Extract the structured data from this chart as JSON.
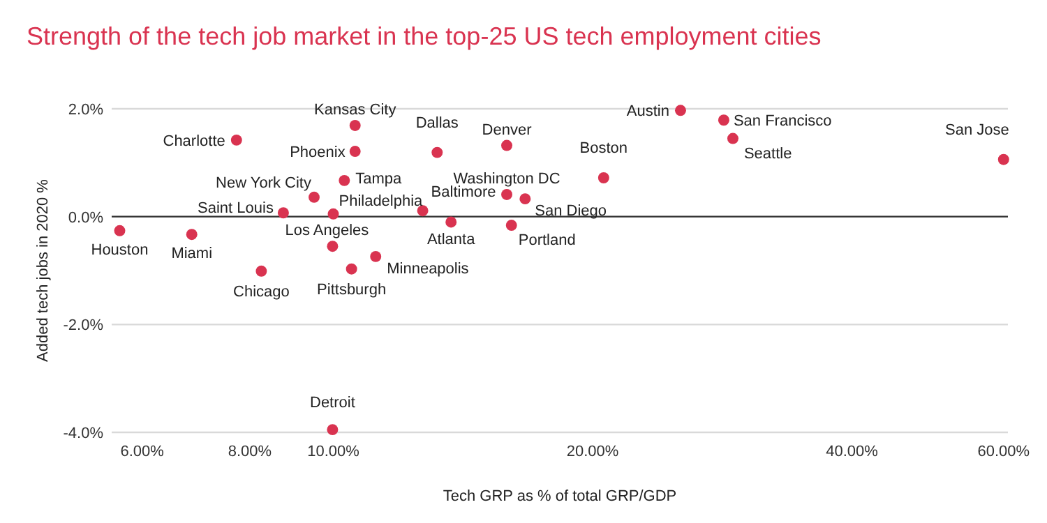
{
  "chart_data": {
    "type": "scatter",
    "title": "Strength of the tech job market in the top-25 US tech employment cities",
    "xlabel": "Tech GRP as % of total GRP/GDP",
    "ylabel": "Added tech jobs in 2020 %",
    "log": "x",
    "grid": "y",
    "marker": "circle",
    "xlim": [
      5.53,
      60.7
    ],
    "xticks": [
      {
        "value": 6,
        "label": "6.00%"
      },
      {
        "value": 8,
        "label": "8.00%"
      },
      {
        "value": 10,
        "label": "10.00%"
      },
      {
        "value": 20,
        "label": "20.00%"
      },
      {
        "value": 40,
        "label": "40.00%"
      },
      {
        "value": 60,
        "label": "60.00%"
      }
    ],
    "ylim": [
      -4,
      2
    ],
    "yticks": [
      {
        "value": 2,
        "label": "2.0%"
      },
      {
        "value": 0,
        "label": "0.0%"
      },
      {
        "value": -2,
        "label": "-2.0%"
      },
      {
        "value": -4,
        "label": "-4.0%"
      }
    ],
    "series": [
      {
        "color": "#d93350",
        "x": [
          5.65,
          6.85,
          8.25,
          7.72,
          8.75,
          9.5,
          10.0,
          9.98,
          9.98,
          10.5,
          11.2,
          10.3,
          10.6,
          10.6,
          12.7,
          13.2,
          13.7,
          15.9,
          15.9,
          16.7,
          16.1,
          20.6,
          25.3,
          28.4,
          29.1,
          60.0
        ],
        "values": [
          -0.26,
          -0.33,
          -1.01,
          1.42,
          0.07,
          0.36,
          0.05,
          -0.55,
          -3.95,
          -0.97,
          -0.74,
          0.67,
          1.69,
          1.21,
          0.11,
          1.19,
          -0.1,
          1.32,
          0.41,
          0.33,
          -0.16,
          0.72,
          1.97,
          1.79,
          1.45,
          1.06
        ]
      }
    ],
    "annotations": [
      {
        "text": "Houston",
        "x": 5.65,
        "y": -0.26
      },
      {
        "text": "Miami",
        "x": 6.85,
        "y": -0.33
      },
      {
        "text": "Chicago",
        "x": 8.25,
        "y": -1.01
      },
      {
        "text": "Charlotte",
        "x": 7.72,
        "y": 1.42
      },
      {
        "text": "Saint Louis",
        "x": 8.75,
        "y": 0.07
      },
      {
        "text": "New York City",
        "x": 9.5,
        "y": 0.36
      },
      {
        "text": "Philadelphia",
        "x": 10.0,
        "y": 0.05
      },
      {
        "text": "Los Angeles",
        "x": 9.98,
        "y": -0.55
      },
      {
        "text": "Detroit",
        "x": 9.98,
        "y": -3.95
      },
      {
        "text": "Pittsburgh",
        "x": 10.5,
        "y": -0.97
      },
      {
        "text": "Minneapolis",
        "x": 11.2,
        "y": -0.74
      },
      {
        "text": "Tampa",
        "x": 10.3,
        "y": 0.67
      },
      {
        "text": "Kansas City",
        "x": 10.6,
        "y": 1.69
      },
      {
        "text": "Phoenix",
        "x": 10.6,
        "y": 1.21
      },
      {
        "text": "Baltimore",
        "x": 12.7,
        "y": 0.11
      },
      {
        "text": "Dallas",
        "x": 13.2,
        "y": 1.19
      },
      {
        "text": "Atlanta",
        "x": 13.7,
        "y": -0.1
      },
      {
        "text": "Denver",
        "x": 15.9,
        "y": 1.32
      },
      {
        "text": "Washington DC",
        "x": 15.9,
        "y": 0.41
      },
      {
        "text": "San Diego",
        "x": 16.7,
        "y": 0.33
      },
      {
        "text": "Portland",
        "x": 16.1,
        "y": -0.16
      },
      {
        "text": "Boston",
        "x": 20.6,
        "y": 0.72
      },
      {
        "text": "Austin",
        "x": 25.3,
        "y": 1.97
      },
      {
        "text": "San Francisco",
        "x": 28.4,
        "y": 1.79
      },
      {
        "text": "Seattle",
        "x": 29.1,
        "y": 1.45
      },
      {
        "text": "San Jose",
        "x": 60.0,
        "y": 1.06
      }
    ]
  }
}
